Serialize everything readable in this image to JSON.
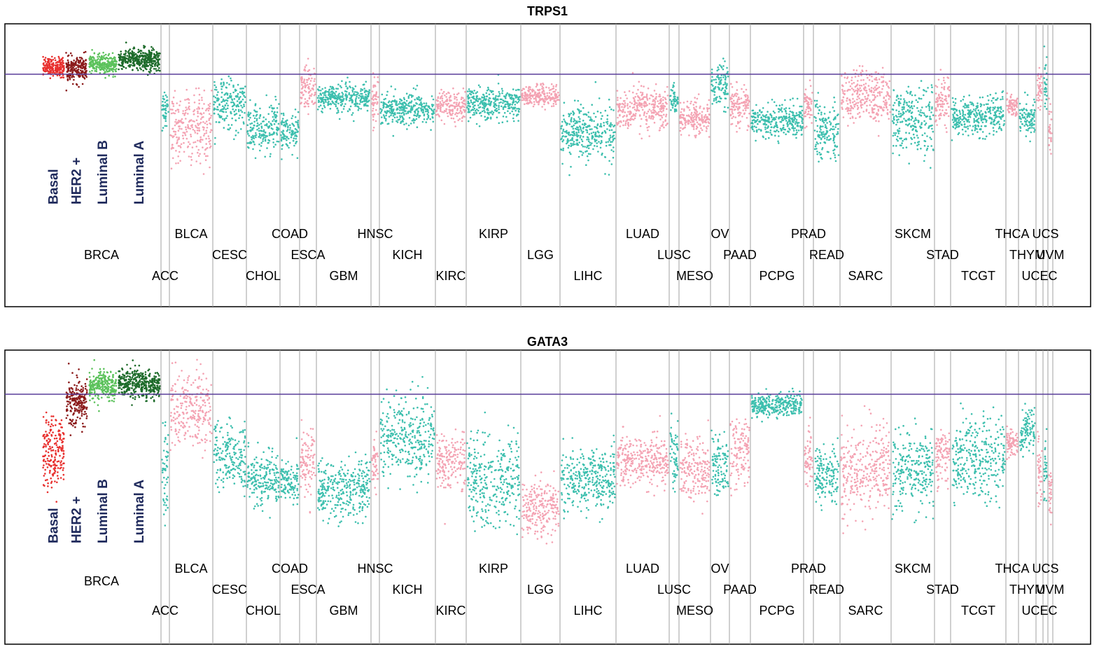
{
  "colors": {
    "pink": "#f4a3b3",
    "teal": "#3dbfae",
    "basal": "#e8302e",
    "her2": "#8b1a1a",
    "luminal_b": "#5cc25c",
    "luminal_a": "#1d6b2a",
    "refline": "#5a3e9a",
    "divider": "#a0a0a0",
    "subtype_text": "#1f2a5c"
  },
  "chart_data": [
    {
      "type": "scatter",
      "title": "TRPS1",
      "reference_line": 0,
      "subtypes": [
        {
          "label": "Basal",
          "center": 0.3,
          "spread": 0.35,
          "color": "basal"
        },
        {
          "label": "HER2 +",
          "center": 0.2,
          "spread": 0.45,
          "color": "her2"
        },
        {
          "label": "Luminal B",
          "center": 0.4,
          "spread": 0.35,
          "color": "luminal_b"
        },
        {
          "label": "Luminal A",
          "center": 0.6,
          "spread": 0.4,
          "color": "luminal_a"
        }
      ],
      "cancers": [
        {
          "label": "ACC",
          "row": 3,
          "center": -1.6,
          "spread": 0.7,
          "color": "teal"
        },
        {
          "label": "BLCA",
          "row": 1,
          "center": -2.2,
          "spread": 1.3,
          "color": "pink"
        },
        {
          "label": "CESC",
          "row": 2,
          "center": -1.2,
          "spread": 0.9,
          "color": "teal"
        },
        {
          "label": "CHOL",
          "row": 3,
          "center": -2.2,
          "spread": 0.9,
          "color": "teal"
        },
        {
          "label": "COAD",
          "row": 1,
          "center": -2.4,
          "spread": 0.8,
          "color": "teal"
        },
        {
          "label": "ESCA",
          "row": 2,
          "center": -0.6,
          "spread": 0.9,
          "color": "pink"
        },
        {
          "label": "GBM",
          "row": 3,
          "center": -1.0,
          "spread": 0.5,
          "color": "teal"
        },
        {
          "label": "HNSC",
          "row": 1,
          "center": -1.0,
          "spread": 0.9,
          "color": "pink"
        },
        {
          "label": "KICH",
          "row": 2,
          "center": -1.4,
          "spread": 0.6,
          "color": "teal"
        },
        {
          "label": "KIRC",
          "row": 3,
          "center": -1.3,
          "spread": 0.5,
          "color": "pink"
        },
        {
          "label": "KIRP",
          "row": 1,
          "center": -1.2,
          "spread": 0.6,
          "color": "teal"
        },
        {
          "label": "LGG",
          "row": 2,
          "center": -0.9,
          "spread": 0.4,
          "color": "pink"
        },
        {
          "label": "LIHC",
          "row": 3,
          "center": -2.4,
          "spread": 1.0,
          "color": "teal"
        },
        {
          "label": "LUAD",
          "row": 1,
          "center": -1.4,
          "spread": 0.8,
          "color": "pink"
        },
        {
          "label": "LUSC",
          "row": 2,
          "center": -1.1,
          "spread": 0.6,
          "color": "teal"
        },
        {
          "label": "MESO",
          "row": 3,
          "center": -1.8,
          "spread": 0.6,
          "color": "pink"
        },
        {
          "label": "OV",
          "row": 1,
          "center": -0.5,
          "spread": 0.8,
          "color": "teal"
        },
        {
          "label": "PAAD",
          "row": 2,
          "center": -1.3,
          "spread": 0.7,
          "color": "pink"
        },
        {
          "label": "PCPG",
          "row": 3,
          "center": -1.9,
          "spread": 0.6,
          "color": "teal"
        },
        {
          "label": "PRAD",
          "row": 1,
          "center": -1.2,
          "spread": 0.7,
          "color": "pink"
        },
        {
          "label": "READ",
          "row": 2,
          "center": -2.3,
          "spread": 1.0,
          "color": "teal"
        },
        {
          "label": "SARC",
          "row": 3,
          "center": -0.9,
          "spread": 1.0,
          "color": "pink"
        },
        {
          "label": "SKCM",
          "row": 1,
          "center": -1.9,
          "spread": 1.2,
          "color": "teal"
        },
        {
          "label": "STAD",
          "row": 2,
          "center": -1.2,
          "spread": 0.9,
          "color": "pink"
        },
        {
          "label": "TCGT",
          "row": 3,
          "center": -1.7,
          "spread": 0.7,
          "color": "teal"
        },
        {
          "label": "THCA",
          "row": 1,
          "center": -1.3,
          "spread": 0.4,
          "color": "pink"
        },
        {
          "label": "THYM",
          "row": 2,
          "center": -1.7,
          "spread": 0.7,
          "color": "teal"
        },
        {
          "label": "UCEC",
          "row": 3,
          "center": -0.7,
          "spread": 0.8,
          "color": "pink"
        },
        {
          "label": "UCS",
          "row": 1,
          "center": -0.5,
          "spread": 1.2,
          "color": "teal"
        },
        {
          "label": "UVM",
          "row": 2,
          "center": -2.3,
          "spread": 0.8,
          "color": "pink"
        }
      ]
    },
    {
      "type": "scatter",
      "title": "GATA3",
      "reference_line": 0,
      "subtypes": [
        {
          "label": "Basal",
          "center": -2.2,
          "spread": 1.2,
          "color": "basal"
        },
        {
          "label": "HER2 +",
          "center": -0.3,
          "spread": 0.8,
          "color": "her2"
        },
        {
          "label": "Luminal B",
          "center": 0.3,
          "spread": 0.5,
          "color": "luminal_b"
        },
        {
          "label": "Luminal A",
          "center": 0.4,
          "spread": 0.5,
          "color": "luminal_a"
        }
      ],
      "cancers": [
        {
          "label": "ACC",
          "row": 3,
          "center": -3.0,
          "spread": 1.5,
          "color": "teal"
        },
        {
          "label": "BLCA",
          "row": 1,
          "center": -0.6,
          "spread": 1.2,
          "color": "pink"
        },
        {
          "label": "CESC",
          "row": 2,
          "center": -2.3,
          "spread": 1.0,
          "color": "teal"
        },
        {
          "label": "CHOL",
          "row": 3,
          "center": -3.2,
          "spread": 0.9,
          "color": "teal"
        },
        {
          "label": "COAD",
          "row": 1,
          "center": -3.3,
          "spread": 0.7,
          "color": "teal"
        },
        {
          "label": "ESCA",
          "row": 2,
          "center": -2.6,
          "spread": 1.2,
          "color": "pink"
        },
        {
          "label": "GBM",
          "row": 3,
          "center": -3.6,
          "spread": 1.0,
          "color": "teal"
        },
        {
          "label": "HNSC",
          "row": 1,
          "center": -2.5,
          "spread": 0.9,
          "color": "pink"
        },
        {
          "label": "KICH",
          "row": 2,
          "center": -1.6,
          "spread": 1.4,
          "color": "teal"
        },
        {
          "label": "KIRC",
          "row": 3,
          "center": -2.5,
          "spread": 0.9,
          "color": "pink"
        },
        {
          "label": "KIRP",
          "row": 1,
          "center": -3.2,
          "spread": 1.6,
          "color": "teal"
        },
        {
          "label": "LGG",
          "row": 2,
          "center": -4.3,
          "spread": 0.9,
          "color": "pink"
        },
        {
          "label": "LIHC",
          "row": 3,
          "center": -3.2,
          "spread": 1.1,
          "color": "teal"
        },
        {
          "label": "LUAD",
          "row": 1,
          "center": -2.5,
          "spread": 0.8,
          "color": "pink"
        },
        {
          "label": "LUSC",
          "row": 2,
          "center": -2.3,
          "spread": 1.2,
          "color": "teal"
        },
        {
          "label": "MESO",
          "row": 3,
          "center": -2.8,
          "spread": 1.0,
          "color": "pink"
        },
        {
          "label": "OV",
          "row": 1,
          "center": -2.7,
          "spread": 1.0,
          "color": "teal"
        },
        {
          "label": "PAAD",
          "row": 2,
          "center": -2.1,
          "spread": 1.2,
          "color": "pink"
        },
        {
          "label": "PCPG",
          "row": 3,
          "center": -0.4,
          "spread": 0.4,
          "color": "teal"
        },
        {
          "label": "PRAD",
          "row": 1,
          "center": -2.3,
          "spread": 1.0,
          "color": "pink"
        },
        {
          "label": "READ",
          "row": 2,
          "center": -3.0,
          "spread": 0.9,
          "color": "teal"
        },
        {
          "label": "SARC",
          "row": 3,
          "center": -2.9,
          "spread": 1.4,
          "color": "pink"
        },
        {
          "label": "SKCM",
          "row": 1,
          "center": -2.9,
          "spread": 1.3,
          "color": "teal"
        },
        {
          "label": "STAD",
          "row": 2,
          "center": -2.4,
          "spread": 1.0,
          "color": "pink"
        },
        {
          "label": "TCGT",
          "row": 3,
          "center": -2.4,
          "spread": 1.4,
          "color": "teal"
        },
        {
          "label": "THCA",
          "row": 1,
          "center": -1.8,
          "spread": 0.5,
          "color": "pink"
        },
        {
          "label": "THYM",
          "row": 2,
          "center": -1.4,
          "spread": 0.8,
          "color": "teal"
        },
        {
          "label": "UCEC",
          "row": 3,
          "center": -3.0,
          "spread": 1.2,
          "color": "pink"
        },
        {
          "label": "UCS",
          "row": 1,
          "center": -2.8,
          "spread": 1.4,
          "color": "teal"
        },
        {
          "label": "UVM",
          "row": 2,
          "center": -3.7,
          "spread": 0.9,
          "color": "pink"
        }
      ]
    }
  ]
}
